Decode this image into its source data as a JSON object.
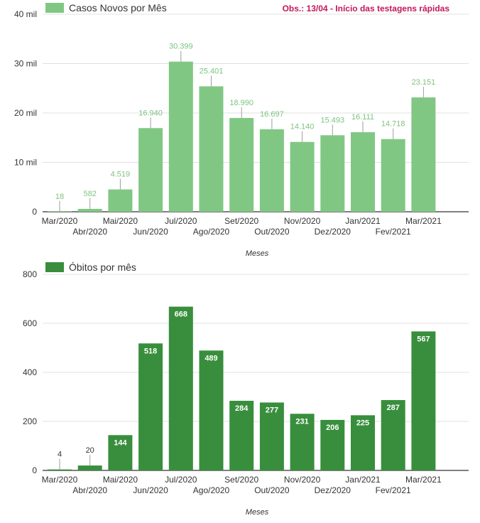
{
  "chart_data": [
    {
      "type": "bar",
      "series": [
        {
          "name": "Casos Novos por Mês",
          "values": [
            18,
            582,
            4519,
            16940,
            30399,
            25401,
            18990,
            16697,
            14140,
            15493,
            16111,
            14718,
            23151
          ]
        }
      ],
      "value_labels": [
        "18",
        "582",
        "4.519",
        "16.940",
        "30.399",
        "25.401",
        "18.990",
        "16.697",
        "14.140",
        "15.493",
        "16.111",
        "14.718",
        "23.151"
      ],
      "categories": [
        "Mar/2020",
        "Abr/2020",
        "Mai/2020",
        "Jun/2020",
        "Jul/2020",
        "Ago/2020",
        "Set/2020",
        "Out/2020",
        "Nov/2020",
        "Dez/2020",
        "Jan/2021",
        "Fev/2021",
        "Mar/2021"
      ],
      "xlabel": "Meses",
      "ylabel": "",
      "ylim": [
        0,
        40000
      ],
      "yticks": [
        0,
        10000,
        20000,
        30000,
        40000
      ],
      "ytick_labels": [
        "0",
        "10 mil",
        "20 mil",
        "30 mil",
        "40 mil"
      ],
      "grid": true,
      "legend": "top-left",
      "annotation": "Obs.: 13/04 - Início das testagens rápidas",
      "color": "#81c784"
    },
    {
      "type": "bar",
      "series": [
        {
          "name": "Óbitos por mês",
          "values": [
            4,
            20,
            144,
            518,
            668,
            489,
            284,
            277,
            231,
            206,
            225,
            287,
            567
          ]
        }
      ],
      "value_labels": [
        "4",
        "20",
        "144",
        "518",
        "668",
        "489",
        "284",
        "277",
        "231",
        "206",
        "225",
        "287",
        "567"
      ],
      "categories": [
        "Mar/2020",
        "Abr/2020",
        "Mai/2020",
        "Jun/2020",
        "Jul/2020",
        "Ago/2020",
        "Set/2020",
        "Out/2020",
        "Nov/2020",
        "Dez/2020",
        "Jan/2021",
        "Fev/2021",
        "Mar/2021"
      ],
      "xlabel": "Meses",
      "ylabel": "",
      "ylim": [
        0,
        800
      ],
      "yticks": [
        0,
        200,
        400,
        600,
        800
      ],
      "ytick_labels": [
        "0",
        "200",
        "400",
        "600",
        "800"
      ],
      "grid": true,
      "legend": "top-left",
      "color": "#388e3c"
    }
  ]
}
